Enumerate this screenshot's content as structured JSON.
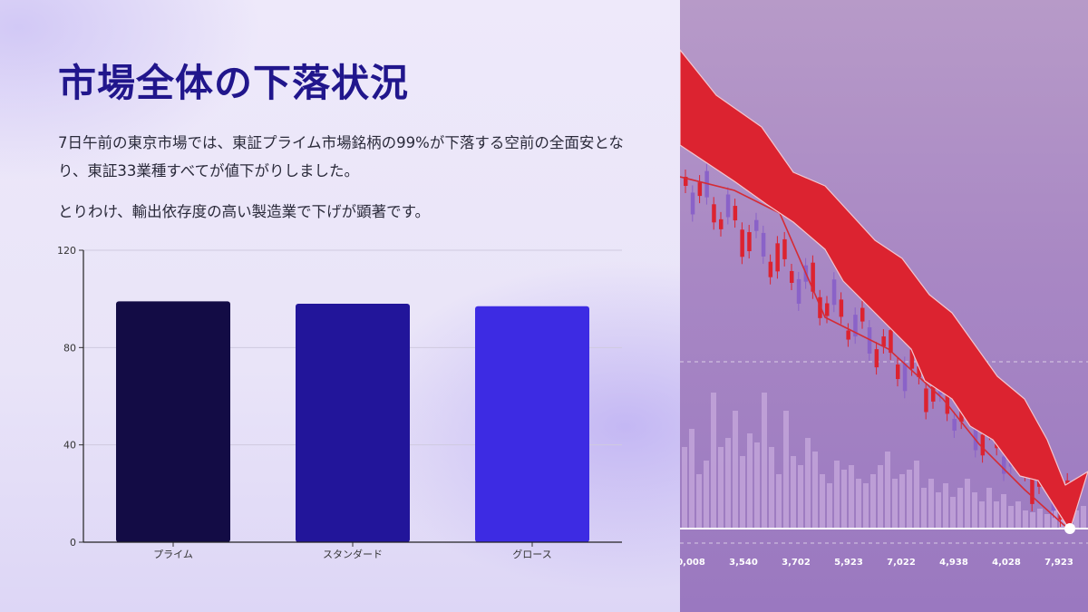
{
  "heading": "市場全体の下落状況",
  "paragraphs": [
    "7日午前の東京市場では、東証プライム市場銘柄の99%が下落する空前の全面安となり、東証33業種すべてが値下がりしました。",
    "とりわけ、輸出依存度の高い製造業で下げが顕著です。"
  ],
  "colors": {
    "title": "#21168c",
    "bars": [
      "#130c45",
      "#22159a",
      "#3d2be3"
    ],
    "arrow": "#dc2330",
    "candle_up": "#8a62c8"
  },
  "chart_data": {
    "type": "bar",
    "categories": [
      "プライム",
      "スタンダード",
      "グロース"
    ],
    "values": [
      99,
      98,
      97
    ],
    "title": "",
    "xlabel": "",
    "ylabel": "",
    "ylim": [
      0,
      120
    ],
    "yticks": [
      0,
      40,
      80,
      120
    ],
    "grid": true
  },
  "illustration": {
    "x_labels": [
      "0,008",
      "3,540",
      "3,702",
      "5,923",
      "7,022",
      "4,938",
      "4,028",
      "7,923"
    ]
  }
}
